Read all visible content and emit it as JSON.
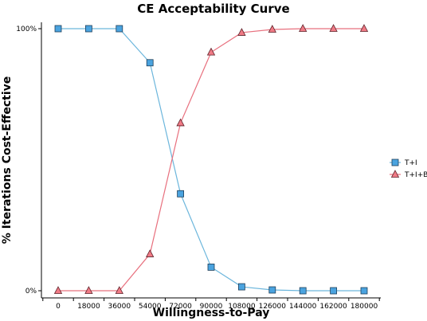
{
  "chart_data": {
    "type": "line",
    "title": "CE Acceptability Curve",
    "xlabel": "Willingness-to-Pay",
    "ylabel": "% Iterations Cost-Effective",
    "x": [
      0,
      18000,
      36000,
      54000,
      72000,
      90000,
      108000,
      126000,
      144000,
      162000,
      180000
    ],
    "x_tick_labels": [
      "0",
      "18000",
      "36000",
      "54000",
      "72000",
      "90000",
      "108000",
      "126000",
      "144000",
      "162000",
      "180000"
    ],
    "ylim": [
      0,
      100
    ],
    "y_ticks": [
      {
        "value": 0,
        "label": "0%"
      },
      {
        "value": 100,
        "label": "100%"
      }
    ],
    "grid": false,
    "legend_position": "right",
    "series": [
      {
        "name": "T+I",
        "marker": "square",
        "line_color": "#6cb6dc",
        "marker_fill": "#4aa3df",
        "values": [
          100,
          100,
          100,
          87,
          37,
          9,
          1.5,
          0.3,
          0,
          0,
          0
        ]
      },
      {
        "name": "T+I+B",
        "marker": "triangle",
        "line_color": "#e8707e",
        "marker_fill": "#f07a85",
        "values": [
          0,
          0,
          0,
          14,
          64,
          91,
          98.5,
          99.7,
          100,
          100,
          100
        ]
      }
    ]
  }
}
